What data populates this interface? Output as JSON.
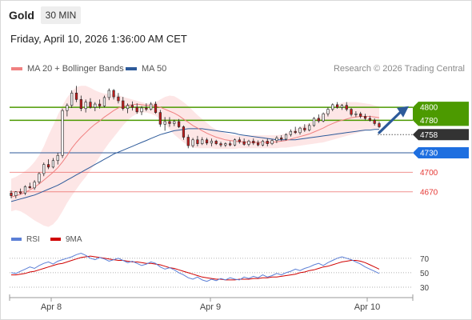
{
  "header": {
    "instrument": "Gold",
    "timeframe": "30 MIN",
    "datetime": "Friday, April 10, 2026 1:36:00 AM CET",
    "copyright": "Research © 2026 Trading Central"
  },
  "colors": {
    "bollinger": "#f08080",
    "bollinger_fill": "#fde2e2",
    "ma50": "#2d5a9a",
    "resistance": "#4c9a00",
    "support_line": "#2d5a9a",
    "support_extra": "#e53935",
    "current_price": "#333333",
    "rsi": "#5b7fd6",
    "rsi_ma": "#d00000",
    "up_candle": "#f5f5f5",
    "down_candle": "#c41e1e"
  },
  "chart_data": [
    {
      "type": "candlestick",
      "legend": [
        {
          "name": "MA 20 + Bollinger Bands",
          "color": "#f08080"
        },
        {
          "name": "MA 50",
          "color": "#2d5a9a"
        }
      ],
      "legend_position": "top-left",
      "ylim": [
        4618,
        4842
      ],
      "x_ticks": [
        "Apr 8",
        "Apr 9",
        "Apr 10"
      ],
      "candles": [
        [
          4668,
          4672,
          4660,
          4664
        ],
        [
          4664,
          4671,
          4660,
          4670
        ],
        [
          4670,
          4675,
          4666,
          4668
        ],
        [
          4668,
          4680,
          4665,
          4678
        ],
        [
          4678,
          4684,
          4675,
          4676
        ],
        [
          4676,
          4688,
          4673,
          4685
        ],
        [
          4685,
          4700,
          4682,
          4698
        ],
        [
          4698,
          4715,
          4694,
          4712
        ],
        [
          4712,
          4720,
          4705,
          4708
        ],
        [
          4708,
          4722,
          4706,
          4718
        ],
        [
          4718,
          4730,
          4712,
          4726
        ],
        [
          4726,
          4798,
          4722,
          4795
        ],
        [
          4795,
          4806,
          4786,
          4803
        ],
        [
          4803,
          4826,
          4799,
          4822
        ],
        [
          4822,
          4833,
          4808,
          4812
        ],
        [
          4812,
          4818,
          4794,
          4798
        ],
        [
          4798,
          4812,
          4792,
          4808
        ],
        [
          4808,
          4814,
          4798,
          4800
        ],
        [
          4800,
          4808,
          4794,
          4805
        ],
        [
          4805,
          4812,
          4798,
          4802
        ],
        [
          4802,
          4818,
          4800,
          4815
        ],
        [
          4815,
          4829,
          4811,
          4826
        ],
        [
          4826,
          4828,
          4812,
          4816
        ],
        [
          4816,
          4822,
          4806,
          4810
        ],
        [
          4810,
          4816,
          4795,
          4798
        ],
        [
          4798,
          4806,
          4791,
          4803
        ],
        [
          4803,
          4809,
          4795,
          4800
        ],
        [
          4800,
          4806,
          4790,
          4793
        ],
        [
          4793,
          4802,
          4788,
          4799
        ],
        [
          4799,
          4806,
          4794,
          4797
        ],
        [
          4797,
          4808,
          4795,
          4805
        ],
        [
          4805,
          4809,
          4790,
          4792
        ],
        [
          4792,
          4796,
          4770,
          4774
        ],
        [
          4774,
          4785,
          4764,
          4778
        ],
        [
          4778,
          4785,
          4770,
          4775
        ],
        [
          4775,
          4781,
          4771,
          4778
        ],
        [
          4778,
          4782,
          4768,
          4770
        ],
        [
          4770,
          4772,
          4750,
          4754
        ],
        [
          4754,
          4758,
          4737,
          4741
        ],
        [
          4741,
          4753,
          4738,
          4750
        ],
        [
          4750,
          4756,
          4740,
          4744
        ],
        [
          4744,
          4754,
          4742,
          4750
        ],
        [
          4750,
          4753,
          4742,
          4745
        ],
        [
          4745,
          4752,
          4740,
          4748
        ],
        [
          4748,
          4750,
          4742,
          4744
        ],
        [
          4744,
          4747,
          4739,
          4742
        ],
        [
          4742,
          4746,
          4739,
          4744
        ],
        [
          4744,
          4748,
          4740,
          4742
        ],
        [
          4742,
          4752,
          4740,
          4750
        ],
        [
          4750,
          4754,
          4744,
          4747
        ],
        [
          4747,
          4752,
          4741,
          4743
        ],
        [
          4743,
          4750,
          4740,
          4748
        ],
        [
          4748,
          4752,
          4742,
          4745
        ],
        [
          4745,
          4749,
          4740,
          4742
        ],
        [
          4742,
          4750,
          4740,
          4748
        ],
        [
          4748,
          4752,
          4740,
          4744
        ],
        [
          4744,
          4751,
          4742,
          4749
        ],
        [
          4749,
          4756,
          4745,
          4753
        ],
        [
          4753,
          4757,
          4748,
          4751
        ],
        [
          4751,
          4760,
          4749,
          4758
        ],
        [
          4758,
          4766,
          4755,
          4763
        ],
        [
          4763,
          4770,
          4759,
          4761
        ],
        [
          4761,
          4770,
          4758,
          4768
        ],
        [
          4768,
          4774,
          4762,
          4765
        ],
        [
          4765,
          4775,
          4763,
          4772
        ],
        [
          4772,
          4785,
          4770,
          4783
        ],
        [
          4783,
          4789,
          4776,
          4779
        ],
        [
          4779,
          4792,
          4777,
          4790
        ],
        [
          4790,
          4800,
          4786,
          4797
        ],
        [
          4797,
          4806,
          4794,
          4804
        ],
        [
          4804,
          4808,
          4798,
          4800
        ],
        [
          4800,
          4805,
          4796,
          4803
        ],
        [
          4803,
          4808,
          4794,
          4797
        ],
        [
          4797,
          4799,
          4786,
          4789
        ],
        [
          4789,
          4794,
          4785,
          4790
        ],
        [
          4790,
          4793,
          4783,
          4786
        ],
        [
          4786,
          4790,
          4780,
          4783
        ],
        [
          4783,
          4787,
          4778,
          4780
        ],
        [
          4780,
          4783,
          4772,
          4775
        ],
        [
          4775,
          4778,
          4768,
          4770
        ]
      ],
      "ma20": [
        4662,
        4664,
        4666,
        4669,
        4673,
        4677,
        4682,
        4688,
        4694,
        4700,
        4707,
        4716,
        4726,
        4737,
        4746,
        4754,
        4761,
        4768,
        4774,
        4779,
        4785,
        4790,
        4795,
        4799,
        4801,
        4803,
        4804,
        4805,
        4804,
        4803,
        4803,
        4802,
        4800,
        4797,
        4794,
        4791,
        4787,
        4782,
        4777,
        4772,
        4768,
        4764,
        4760,
        4757,
        4754,
        4752,
        4750,
        4749,
        4748,
        4747,
        4747,
        4746,
        4746,
        4746,
        4746,
        4746,
        4746,
        4747,
        4748,
        4749,
        4751,
        4753,
        4755,
        4757,
        4759,
        4762,
        4765,
        4768,
        4772,
        4775,
        4778,
        4780,
        4782,
        4784,
        4785,
        4786,
        4786,
        4786,
        4785,
        4784
      ],
      "bb_upper": [
        4690,
        4693,
        4697,
        4702,
        4708,
        4716,
        4726,
        4740,
        4757,
        4772,
        4788,
        4803,
        4815,
        4824,
        4831,
        4833,
        4833,
        4830,
        4826,
        4823,
        4821,
        4821,
        4820,
        4819,
        4816,
        4814,
        4812,
        4810,
        4808,
        4806,
        4806,
        4808,
        4812,
        4816,
        4818,
        4817,
        4813,
        4808,
        4802,
        4795,
        4788,
        4782,
        4776,
        4770,
        4766,
        4763,
        4760,
        4758,
        4757,
        4756,
        4756,
        4756,
        4757,
        4757,
        4757,
        4757,
        4757,
        4757,
        4758,
        4760,
        4763,
        4766,
        4769,
        4772,
        4776,
        4780,
        4785,
        4790,
        4795,
        4800,
        4804,
        4807,
        4808,
        4808,
        4808,
        4807,
        4806,
        4805,
        4803,
        4801
      ],
      "bb_lower": [
        4640,
        4642,
        4640,
        4636,
        4631,
        4626,
        4622,
        4618,
        4616,
        4620,
        4628,
        4640,
        4653,
        4664,
        4674,
        4684,
        4693,
        4703,
        4713,
        4724,
        4735,
        4745,
        4754,
        4763,
        4772,
        4780,
        4786,
        4790,
        4792,
        4792,
        4790,
        4787,
        4782,
        4775,
        4766,
        4758,
        4752,
        4746,
        4741,
        4738,
        4737,
        4737,
        4737,
        4737,
        4736,
        4736,
        4736,
        4736,
        4736,
        4737,
        4737,
        4737,
        4737,
        4737,
        4737,
        4737,
        4737,
        4737,
        4738,
        4738,
        4739,
        4740,
        4741,
        4742,
        4743,
        4744,
        4745,
        4746,
        4748,
        4750,
        4752,
        4754,
        4756,
        4758,
        4760,
        4762,
        4764,
        4766,
        4767,
        4767
      ],
      "ma50": [
        4655,
        4657,
        4659,
        4661,
        4663,
        4665,
        4668,
        4671,
        4674,
        4677,
        4680,
        4684,
        4688,
        4692,
        4696,
        4700,
        4704,
        4708,
        4712,
        4716,
        4720,
        4724,
        4728,
        4731,
        4734,
        4737,
        4740,
        4743,
        4746,
        4749,
        4752,
        4755,
        4758,
        4760,
        4762,
        4764,
        4765,
        4766,
        4767,
        4767,
        4767,
        4767,
        4766,
        4765,
        4764,
        4763,
        4762,
        4761,
        4760,
        4758,
        4757,
        4756,
        4755,
        4754,
        4753,
        4752,
        4751,
        4750,
        4750,
        4750,
        4750,
        4750,
        4751,
        4752,
        4753,
        4754,
        4755,
        4756,
        4757,
        4758,
        4759,
        4760,
        4761,
        4762,
        4763,
        4764,
        4765,
        4765,
        4766,
        4766
      ],
      "resistance_levels": [
        {
          "label": "4800",
          "value": 4800
        },
        {
          "label": "4780",
          "value": 4780
        }
      ],
      "support_levels": [
        {
          "label": "4730",
          "value": 4730,
          "style": "pivot"
        },
        {
          "label": "4700",
          "value": 4700,
          "style": "extra"
        },
        {
          "label": "4670",
          "value": 4670,
          "style": "extra"
        }
      ],
      "current_price": {
        "label": "4758",
        "value": 4758
      },
      "forecast_arrow": {
        "from": 4761,
        "to": 4798
      }
    },
    {
      "type": "line",
      "legend": [
        {
          "name": "RSI",
          "color": "#5b7fd6"
        },
        {
          "name": "9MA",
          "color": "#d00000"
        }
      ],
      "legend_position": "top-left",
      "ylim": [
        20,
        82
      ],
      "y_ticks": [
        {
          "label": "70",
          "value": 70
        },
        {
          "label": "50",
          "value": 50
        },
        {
          "label": "30",
          "value": 30
        }
      ],
      "rsi": [
        50,
        49,
        52,
        55,
        58,
        56,
        60,
        63,
        65,
        62,
        66,
        68,
        70,
        72,
        75,
        77,
        74,
        70,
        68,
        71,
        69,
        66,
        68,
        70,
        67,
        64,
        66,
        63,
        60,
        62,
        65,
        63,
        58,
        55,
        57,
        54,
        50,
        47,
        43,
        41,
        44,
        40,
        38,
        41,
        39,
        42,
        40,
        43,
        41,
        40,
        44,
        42,
        45,
        43,
        47,
        44,
        46,
        49,
        47,
        50,
        52,
        55,
        53,
        56,
        58,
        61,
        63,
        60,
        64,
        67,
        70,
        72,
        70,
        68,
        65,
        62,
        58,
        55,
        52,
        49
      ],
      "rsi_ma": [
        47,
        47,
        48,
        49,
        51,
        52,
        54,
        56,
        58,
        60,
        62,
        63,
        65,
        67,
        69,
        71,
        72,
        73,
        72,
        71,
        70,
        69,
        68,
        67,
        67,
        66,
        65,
        65,
        64,
        63,
        63,
        62,
        61,
        59,
        57,
        56,
        54,
        52,
        50,
        48,
        46,
        44,
        43,
        42,
        41,
        41,
        40,
        40,
        40,
        41,
        41,
        41,
        42,
        42,
        43,
        43,
        44,
        44,
        45,
        46,
        47,
        48,
        50,
        51,
        53,
        54,
        56,
        58,
        59,
        61,
        63,
        65,
        66,
        67,
        67,
        66,
        64,
        61,
        58,
        55
      ]
    }
  ]
}
